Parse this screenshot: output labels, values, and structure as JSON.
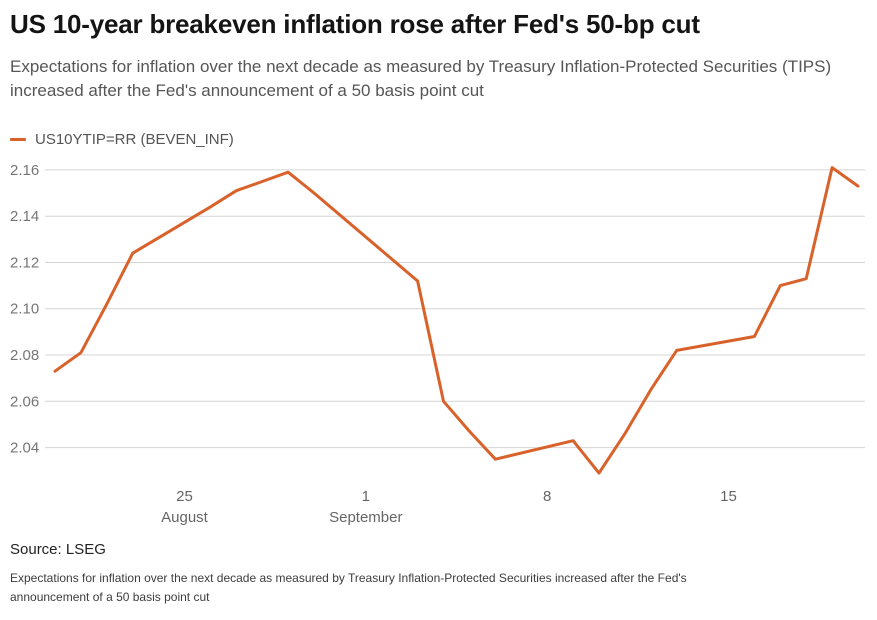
{
  "header": {
    "title": "US 10-year breakeven inflation rose after Fed's 50-bp cut",
    "subtitle": "Expectations for inflation over the next decade as measured by Treasury Inflation-Protected Securities (TIPS) increased after the Fed's announcement of a 50 basis point cut"
  },
  "legend": {
    "series_label": "US10YTIP=RR (BEVEN_INF)"
  },
  "footer": {
    "source": "Source: LSEG",
    "note": "Expectations for inflation over the next decade as measured by Treasury Inflation-Protected Securities increased after the Fed's announcement of a 50 basis point cut"
  },
  "colors": {
    "line": "#d9622b",
    "grid": "#d4d4d4",
    "y_axis_text": "#767676",
    "x_axis_text": "#666666"
  },
  "chart_data": {
    "type": "line",
    "title": "US 10-year breakeven inflation rose after Fed's 50-bp cut",
    "xlabel": "",
    "ylabel": "",
    "grid": "horizontal",
    "legend_position": "top-left",
    "ylim": [
      2.026,
      2.166
    ],
    "y_ticks": [
      2.16,
      2.14,
      2.12,
      2.1,
      2.08,
      2.06,
      2.04
    ],
    "x_ticks": [
      {
        "t": 5,
        "label": "25",
        "sublabel": "August"
      },
      {
        "t": 12,
        "label": "1",
        "sublabel": "September"
      },
      {
        "t": 19,
        "label": "8",
        "sublabel": ""
      },
      {
        "t": 26,
        "label": "15",
        "sublabel": ""
      }
    ],
    "series": [
      {
        "name": "US10YTIP=RR (BEVEN_INF)",
        "color": "#d9622b",
        "points": [
          {
            "date": "Aug 20",
            "t": 0,
            "value": 2.073
          },
          {
            "date": "Aug 21",
            "t": 1,
            "value": 2.081
          },
          {
            "date": "Aug 22",
            "t": 2,
            "value": 2.102
          },
          {
            "date": "Aug 23",
            "t": 3,
            "value": 2.124
          },
          {
            "date": "Aug 26",
            "t": 6,
            "value": 2.144
          },
          {
            "date": "Aug 27",
            "t": 7,
            "value": 2.151
          },
          {
            "date": "Aug 28",
            "t": 8,
            "value": 2.155
          },
          {
            "date": "Aug 29",
            "t": 9,
            "value": 2.159
          },
          {
            "date": "Aug 30",
            "t": 10,
            "value": 2.15
          },
          {
            "date": "Sep 3",
            "t": 14,
            "value": 2.112
          },
          {
            "date": "Sep 4",
            "t": 15,
            "value": 2.06
          },
          {
            "date": "Sep 5",
            "t": 16,
            "value": 2.047
          },
          {
            "date": "Sep 6",
            "t": 17,
            "value": 2.035
          },
          {
            "date": "Sep 9",
            "t": 20,
            "value": 2.043
          },
          {
            "date": "Sep 10",
            "t": 21,
            "value": 2.029
          },
          {
            "date": "Sep 11",
            "t": 22,
            "value": 2.046
          },
          {
            "date": "Sep 12",
            "t": 23,
            "value": 2.065
          },
          {
            "date": "Sep 13",
            "t": 24,
            "value": 2.082
          },
          {
            "date": "Sep 16",
            "t": 27,
            "value": 2.088
          },
          {
            "date": "Sep 17",
            "t": 28,
            "value": 2.11
          },
          {
            "date": "Sep 18",
            "t": 29,
            "value": 2.113
          },
          {
            "date": "Sep 19",
            "t": 30,
            "value": 2.161
          },
          {
            "date": "Sep 20",
            "t": 31,
            "value": 2.153
          }
        ]
      }
    ]
  }
}
